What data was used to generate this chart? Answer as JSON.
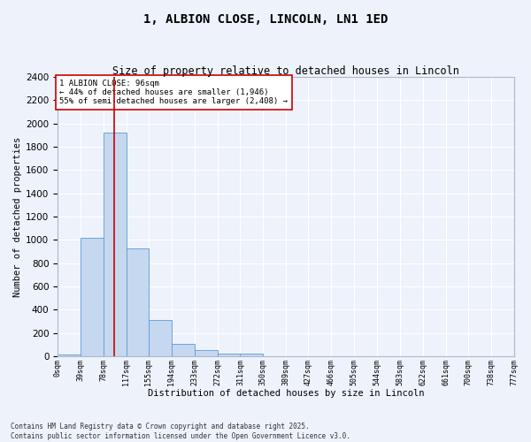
{
  "title": "1, ALBION CLOSE, LINCOLN, LN1 1ED",
  "subtitle": "Size of property relative to detached houses in Lincoln",
  "xlabel": "Distribution of detached houses by size in Lincoln",
  "ylabel": "Number of detached properties",
  "bar_color": "#c5d8f0",
  "bar_edge_color": "#5b9bd5",
  "background_color": "#edf2fb",
  "grid_color": "#ffffff",
  "annotation_text": "1 ALBION CLOSE: 96sqm\n← 44% of detached houses are smaller (1,946)\n55% of semi-detached houses are larger (2,408) →",
  "vline_color": "#cc0000",
  "property_size_sqm": 96,
  "bin_edges": [
    0,
    39,
    78,
    117,
    155,
    194,
    233,
    272,
    311,
    350,
    389,
    427,
    466,
    505,
    544,
    583,
    622,
    661,
    700,
    738,
    777
  ],
  "bin_counts": [
    18,
    1020,
    1920,
    930,
    310,
    110,
    50,
    25,
    20,
    0,
    0,
    0,
    0,
    0,
    0,
    0,
    0,
    0,
    0,
    0
  ],
  "ylim": [
    0,
    2400
  ],
  "yticks": [
    0,
    200,
    400,
    600,
    800,
    1000,
    1200,
    1400,
    1600,
    1800,
    2000,
    2200,
    2400
  ],
  "footnote": "Contains HM Land Registry data © Crown copyright and database right 2025.\nContains public sector information licensed under the Open Government Licence v3.0.",
  "tick_labels": [
    "0sqm",
    "39sqm",
    "78sqm",
    "117sqm",
    "155sqm",
    "194sqm",
    "233sqm",
    "272sqm",
    "311sqm",
    "350sqm",
    "389sqm",
    "427sqm",
    "466sqm",
    "505sqm",
    "544sqm",
    "583sqm",
    "622sqm",
    "661sqm",
    "700sqm",
    "738sqm",
    "777sqm"
  ]
}
